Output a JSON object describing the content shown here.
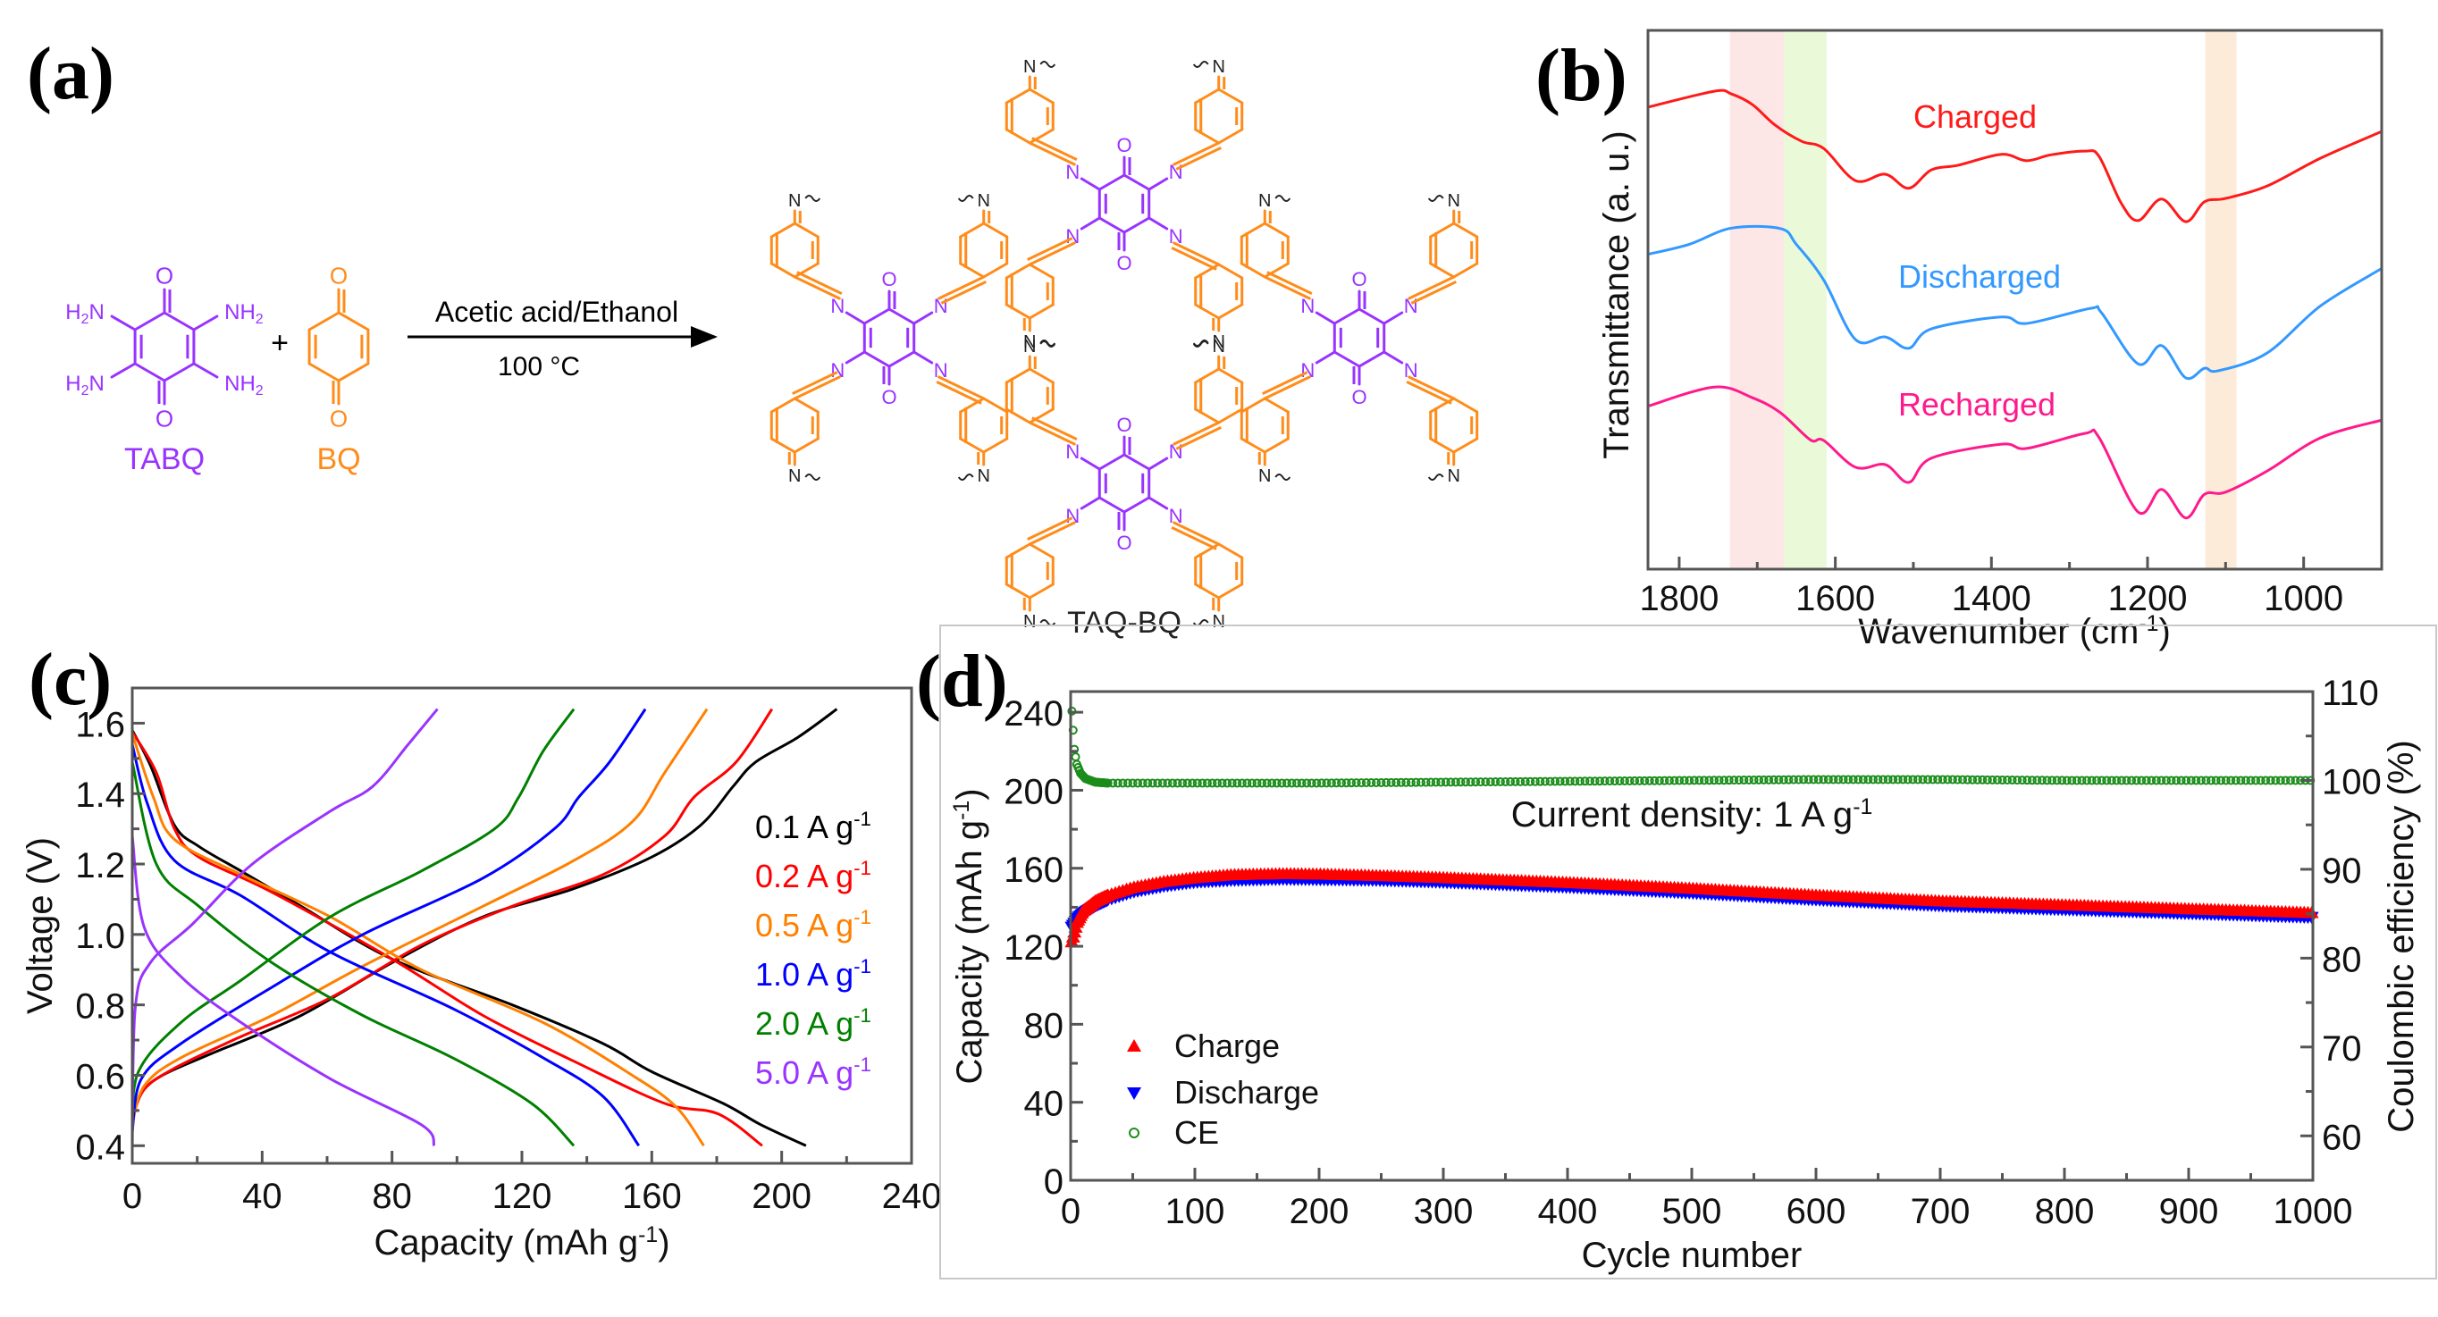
{
  "colors": {
    "tabq": "#9933ff",
    "bq": "#ff8c1a",
    "charged": "#ff1a1a",
    "discharged": "#3399ff",
    "recharged": "#ff1a8c",
    "band_pink": "#fde6e6",
    "band_green": "#eafad9",
    "band_orange": "#fdebd9",
    "charge": "#ff0000",
    "discharge": "#0000ff",
    "ce": "#1a8c1a"
  },
  "panel_a": {
    "label": "(a)",
    "reactant1": "TABQ",
    "reactant2": "BQ",
    "plus": "+",
    "condition_top": "Acetic acid/Ethanol",
    "condition_bottom": "100 °C",
    "product": "TAQ-BQ",
    "atoms": {
      "O": "O",
      "N": "N",
      "NH2": "NH2",
      "H2N": "H2N"
    }
  },
  "chart_data": [
    {
      "id": "b",
      "panel_label": "(b)",
      "type": "line",
      "xlabel": "Wavenumber (cm-1)",
      "ylabel": "Transmittance (a. u.)",
      "xlim": [
        1840,
        900
      ],
      "ylim": [
        0,
        100
      ],
      "x_reversed": true,
      "xticks": [
        1800,
        1600,
        1400,
        1200,
        1000
      ],
      "xticks_minor": [
        1700,
        1500,
        1300,
        1100
      ],
      "yticks": [],
      "grid": false,
      "bands": [
        {
          "from": 1735,
          "to": 1666,
          "color": "#fde6e6"
        },
        {
          "from": 1666,
          "to": 1611,
          "color": "#eafad9"
        },
        {
          "from": 1126,
          "to": 1086,
          "color": "#fdebd9"
        }
      ],
      "series": [
        {
          "name": "Charged",
          "color": "#ff1a1a",
          "x": [
            1841,
            1755,
            1733,
            1706,
            1677,
            1643,
            1615,
            1574,
            1536,
            1506,
            1477,
            1442,
            1387,
            1355,
            1324,
            1280,
            1262,
            1234,
            1212,
            1182,
            1151,
            1127,
            1100,
            1047,
            978,
            899
          ],
          "y": [
            85.7,
            88.7,
            88.2,
            86.2,
            82.4,
            79.4,
            78.1,
            72.1,
            73.3,
            70.7,
            74.1,
            75.0,
            77.0,
            75.8,
            76.9,
            77.6,
            76.6,
            68.0,
            64.7,
            68.7,
            64.5,
            68.2,
            68.8,
            71.1,
            76.3,
            81.3
          ]
        },
        {
          "name": "Discharged",
          "color": "#3399ff",
          "x": [
            1841,
            1787,
            1733,
            1670,
            1650,
            1615,
            1574,
            1536,
            1506,
            1477,
            1387,
            1355,
            1273,
            1259,
            1212,
            1182,
            1151,
            1127,
            1110,
            1047,
            978,
            899
          ],
          "y": [
            58.4,
            60.3,
            63.3,
            63.2,
            60.3,
            53.7,
            42.6,
            43.1,
            41.0,
            44.6,
            46.8,
            45.6,
            48.4,
            47.6,
            38.1,
            41.5,
            35.5,
            37.3,
            36.8,
            40.1,
            48.9,
            55.9
          ]
        },
        {
          "name": "Recharged",
          "color": "#ff1a8c",
          "x": [
            1841,
            1755,
            1706,
            1670,
            1632,
            1615,
            1574,
            1536,
            1506,
            1477,
            1387,
            1355,
            1280,
            1262,
            1212,
            1182,
            1151,
            1127,
            1100,
            1047,
            978,
            899
          ],
          "y": [
            30.2,
            33.8,
            31.8,
            29.0,
            24.0,
            23.9,
            18.9,
            19.4,
            16.1,
            20.6,
            23.2,
            22.4,
            25.2,
            24.4,
            10.6,
            14.8,
            9.5,
            13.9,
            14.3,
            18.2,
            24.4,
            27.7
          ]
        }
      ]
    },
    {
      "id": "c",
      "panel_label": "(c)",
      "type": "line",
      "xlabel": "Capacity (mAh g-1)",
      "ylabel": "Voltage (V)",
      "xlim": [
        0,
        240
      ],
      "ylim": [
        0.35,
        1.7
      ],
      "xticks": [
        0,
        40,
        80,
        120,
        160,
        200,
        240
      ],
      "xticks_minor": [
        20,
        60,
        100,
        140,
        180,
        220
      ],
      "yticks": [
        0.4,
        0.6,
        0.8,
        1.0,
        1.2,
        1.4,
        1.6
      ],
      "yticks_labels": [
        "0.4",
        "0.6",
        "0.8",
        "1.0",
        "1.2",
        "1.4",
        "1.6"
      ],
      "yticks_minor": [
        0.5,
        0.7,
        0.9,
        1.1,
        1.3,
        1.5
      ],
      "grid": false,
      "legend": "right",
      "series": [
        {
          "name": "0.1 A g-1",
          "color": "#000000",
          "discharge": {
            "x": [
              0,
              5.6,
              13,
              20.5,
              33.5,
              52,
              80,
              117,
              145,
              160,
              182,
              193.5,
              207.5
            ],
            "y": [
              1.58,
              1.48,
              1.31,
              1.25,
              1.18,
              1.08,
              0.93,
              0.8,
              0.69,
              0.61,
              0.52,
              0.46,
              0.4
            ]
          },
          "charge": {
            "x": [
              0,
              2.8,
              9.3,
              24,
              52,
              80,
              108,
              136,
              160,
              175,
              185,
              192,
              205,
              217
            ],
            "y": [
              0.475,
              0.55,
              0.6,
              0.66,
              0.77,
              0.92,
              1.05,
              1.13,
              1.22,
              1.31,
              1.42,
              1.49,
              1.56,
              1.64
            ]
          }
        },
        {
          "name": "0.2 A g-1",
          "color": "#ff0000",
          "discharge": {
            "x": [
              0,
              7.4,
              13,
              20.5,
              43,
              80,
              108,
              136,
              164,
              180.5,
              194
            ],
            "y": [
              1.575,
              1.46,
              1.3,
              1.22,
              1.12,
              0.93,
              0.77,
              0.64,
              0.52,
              0.49,
              0.4
            ]
          },
          "charge": {
            "x": [
              0,
              3.7,
              13,
              33.5,
              61,
              89,
              117,
              145,
              164,
              173,
              186,
              197
            ],
            "y": [
              0.475,
              0.56,
              0.62,
              0.71,
              0.82,
              0.97,
              1.08,
              1.17,
              1.28,
              1.39,
              1.49,
              1.64
            ]
          }
        },
        {
          "name": "0.5 A g-1",
          "color": "#ff8000",
          "discharge": {
            "x": [
              0,
              6.5,
              13,
              33.5,
              61,
              89,
              126.5,
              154,
              167.5,
              176
            ],
            "y": [
              1.57,
              1.39,
              1.27,
              1.17,
              1.05,
              0.9,
              0.75,
              0.6,
              0.51,
              0.4
            ]
          },
          "charge": {
            "x": [
              0,
              3.7,
              15,
              43,
              71,
              108,
              136,
              154,
              164,
              177
            ],
            "y": [
              0.46,
              0.57,
              0.65,
              0.77,
              0.91,
              1.08,
              1.21,
              1.32,
              1.46,
              1.64
            ]
          }
        },
        {
          "name": "1.0 A g-1",
          "color": "#0000ff",
          "discharge": {
            "x": [
              0,
              4.7,
              13,
              33.5,
              61,
              98.6,
              126.5,
              145,
              156
            ],
            "y": [
              1.54,
              1.37,
              1.21,
              1.11,
              0.95,
              0.79,
              0.65,
              0.54,
              0.4
            ]
          },
          "charge": {
            "x": [
              0,
              2.8,
              15,
              43,
              71,
              108,
              130,
              137.5,
              147,
              158
            ],
            "y": [
              0.44,
              0.59,
              0.69,
              0.85,
              1.0,
              1.16,
              1.3,
              1.39,
              1.49,
              1.64
            ]
          }
        },
        {
          "name": "2.0 A g-1",
          "color": "#008000",
          "discharge": {
            "x": [
              0,
              7.4,
              20.5,
              43,
              71,
              98.6,
              123,
              136
            ],
            "y": [
              1.49,
              1.2,
              1.08,
              0.92,
              0.77,
              0.65,
              0.52,
              0.4
            ]
          },
          "charge": {
            "x": [
              0,
              1.9,
              15,
              33.5,
              61,
              89,
              111.6,
              119,
              126.5,
              136
            ],
            "y": [
              0.44,
              0.61,
              0.75,
              0.87,
              1.05,
              1.18,
              1.3,
              1.39,
              1.52,
              1.64
            ]
          }
        },
        {
          "name": "5.0 A g-1",
          "color": "#9933ff",
          "discharge": {
            "x": [
              0,
              3.7,
              15,
              33.5,
              61,
              89,
              93
            ],
            "y": [
              1.28,
              1.02,
              0.88,
              0.75,
              0.59,
              0.46,
              0.4
            ]
          },
          "charge": {
            "x": [
              0,
              0.9,
              5.6,
              18.6,
              37,
              61,
              74,
              85,
              94
            ],
            "y": [
              0.39,
              0.79,
              0.92,
              1.03,
              1.2,
              1.35,
              1.42,
              1.54,
              1.64
            ]
          }
        }
      ]
    },
    {
      "id": "d",
      "panel_label": "(d)",
      "type": "scatter",
      "xlabel": "Cycle number",
      "ylabel": "Capacity (mAh g-1)",
      "ylabel_right": "Coulombic efficiency (%)",
      "annotation": "Current density: 1 A g-1",
      "xlim": [
        0,
        1000
      ],
      "ylim": [
        0,
        250.6
      ],
      "ylim_right": [
        55,
        110
      ],
      "xticks": [
        0,
        100,
        200,
        300,
        400,
        500,
        600,
        700,
        800,
        900,
        1000
      ],
      "xticks_minor": [
        50,
        150,
        250,
        350,
        450,
        550,
        650,
        750,
        850,
        950
      ],
      "yticks": [
        0,
        40,
        80,
        120,
        160,
        200,
        240
      ],
      "yticks_minor": [
        20,
        60,
        100,
        140,
        180,
        220
      ],
      "yticks_right": [
        60,
        70,
        80,
        90,
        100,
        110
      ],
      "yticks_right_minor": [
        65,
        75,
        85,
        95,
        105
      ],
      "grid": false,
      "legend": "bottom-left",
      "series": [
        {
          "name": "Charge",
          "marker": "triangle-up",
          "color": "#ff0000",
          "axis": "left",
          "x": [
            1,
            5,
            10,
            20,
            30,
            50,
            75,
            100,
            130,
            170,
            200,
            250,
            300,
            400,
            500,
            600,
            700,
            800,
            900,
            1000
          ],
          "y": [
            122,
            132,
            138,
            143,
            146,
            150,
            153,
            155,
            156.5,
            157,
            156.8,
            156,
            155,
            152.5,
            149.5,
            146,
            143,
            141,
            139,
            137
          ]
        },
        {
          "name": "Discharge",
          "marker": "triangle-down",
          "color": "#0000ff",
          "axis": "left",
          "x": [
            1,
            5,
            10,
            20,
            30,
            50,
            75,
            100,
            130,
            170,
            200,
            250,
            300,
            400,
            500,
            600,
            700,
            800,
            900,
            1000
          ],
          "y": [
            130,
            134,
            137,
            141,
            144,
            148,
            151,
            153,
            154,
            154.6,
            154.4,
            154,
            153,
            150.5,
            147.5,
            144,
            141,
            139,
            137,
            135
          ]
        },
        {
          "name": "CE",
          "marker": "circle-open",
          "color": "#1a8c1a",
          "axis": "right",
          "x": [
            1,
            3,
            5,
            8,
            12,
            20,
            30,
            50,
            100,
            200,
            300,
            400,
            500,
            600,
            700,
            800,
            900,
            1000
          ],
          "y": [
            107.8,
            103.5,
            101.8,
            100.8,
            100.2,
            99.8,
            99.7,
            99.7,
            99.7,
            99.7,
            99.8,
            99.9,
            100.0,
            100.1,
            100.1,
            100.0,
            100.0,
            100.0
          ]
        }
      ]
    }
  ]
}
